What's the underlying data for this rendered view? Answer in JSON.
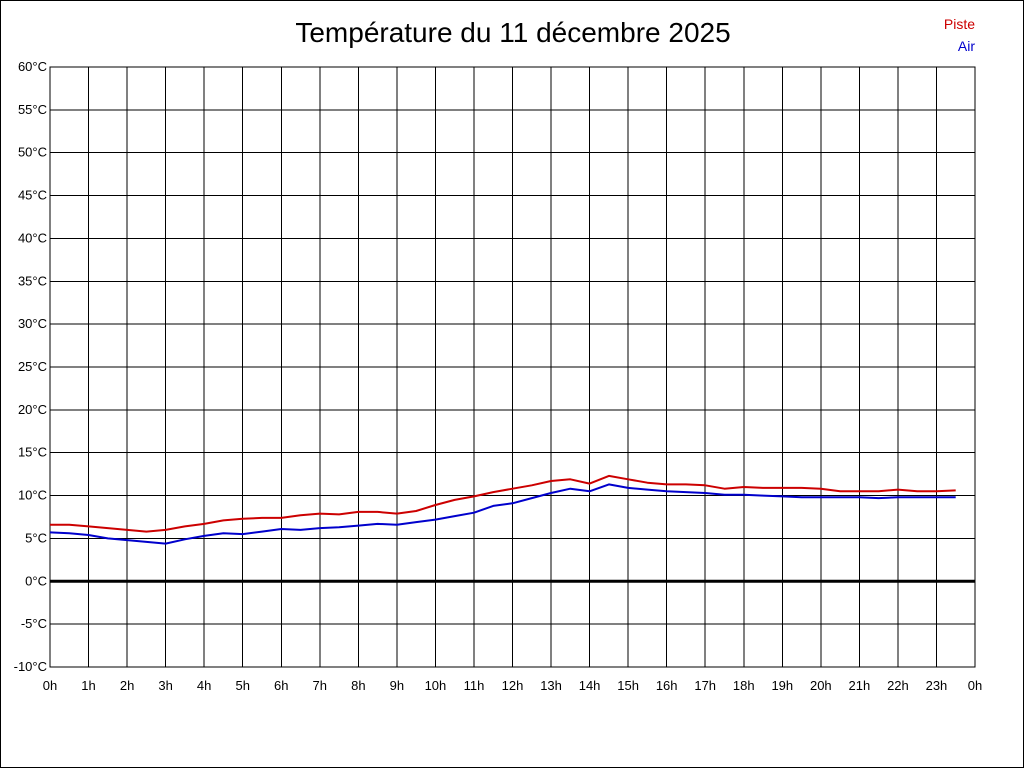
{
  "chart_data": {
    "type": "line",
    "title": "Température du 11 décembre 2025",
    "xlabel": "",
    "ylabel": "",
    "ylim": [
      -10,
      60
    ],
    "xlim": [
      0,
      24
    ],
    "grid": true,
    "legend_position": "top-right",
    "x_tick_labels": [
      "0h",
      "1h",
      "2h",
      "3h",
      "4h",
      "5h",
      "6h",
      "7h",
      "8h",
      "9h",
      "10h",
      "11h",
      "12h",
      "13h",
      "14h",
      "15h",
      "16h",
      "17h",
      "18h",
      "19h",
      "20h",
      "21h",
      "22h",
      "23h",
      "0h"
    ],
    "y_tick_labels": [
      "-10°C",
      "-5°C",
      "0°C",
      "5°C",
      "10°C",
      "15°C",
      "20°C",
      "25°C",
      "30°C",
      "35°C",
      "40°C",
      "45°C",
      "50°C",
      "55°C",
      "60°C"
    ],
    "x_hours": [
      0,
      0.5,
      1,
      1.5,
      2,
      2.5,
      3,
      3.5,
      4,
      4.5,
      5,
      5.5,
      6,
      6.5,
      7,
      7.5,
      8,
      8.5,
      9,
      9.5,
      10,
      10.5,
      11,
      11.5,
      12,
      12.5,
      13,
      13.5,
      14,
      14.5,
      15,
      15.5,
      16,
      16.5,
      17,
      17.5,
      18,
      18.5,
      19,
      19.5,
      20,
      20.5,
      21,
      21.5,
      22,
      22.5,
      23,
      23.5
    ],
    "series": [
      {
        "name": "Piste",
        "color": "#cc0000",
        "values": [
          6.6,
          6.6,
          6.4,
          6.2,
          6.0,
          5.8,
          6.0,
          6.4,
          6.7,
          7.1,
          7.3,
          7.4,
          7.4,
          7.7,
          7.9,
          7.8,
          8.1,
          8.1,
          7.9,
          8.2,
          8.9,
          9.5,
          9.9,
          10.4,
          10.8,
          11.2,
          11.7,
          11.9,
          11.4,
          12.3,
          11.9,
          11.5,
          11.3,
          11.3,
          11.2,
          10.8,
          11.0,
          10.9,
          10.9,
          10.9,
          10.8,
          10.5,
          10.5,
          10.5,
          10.7,
          10.5,
          10.5,
          10.6
        ]
      },
      {
        "name": "Air",
        "color": "#0000cc",
        "values": [
          5.7,
          5.6,
          5.4,
          5.0,
          4.8,
          4.6,
          4.4,
          4.9,
          5.3,
          5.6,
          5.5,
          5.8,
          6.1,
          6.0,
          6.2,
          6.3,
          6.5,
          6.7,
          6.6,
          6.9,
          7.2,
          7.6,
          8.0,
          8.8,
          9.1,
          9.7,
          10.3,
          10.8,
          10.5,
          11.3,
          10.9,
          10.7,
          10.5,
          10.4,
          10.3,
          10.1,
          10.1,
          10.0,
          9.9,
          9.8,
          9.8,
          9.8,
          9.8,
          9.7,
          9.8,
          9.8,
          9.8,
          9.8
        ]
      }
    ]
  }
}
